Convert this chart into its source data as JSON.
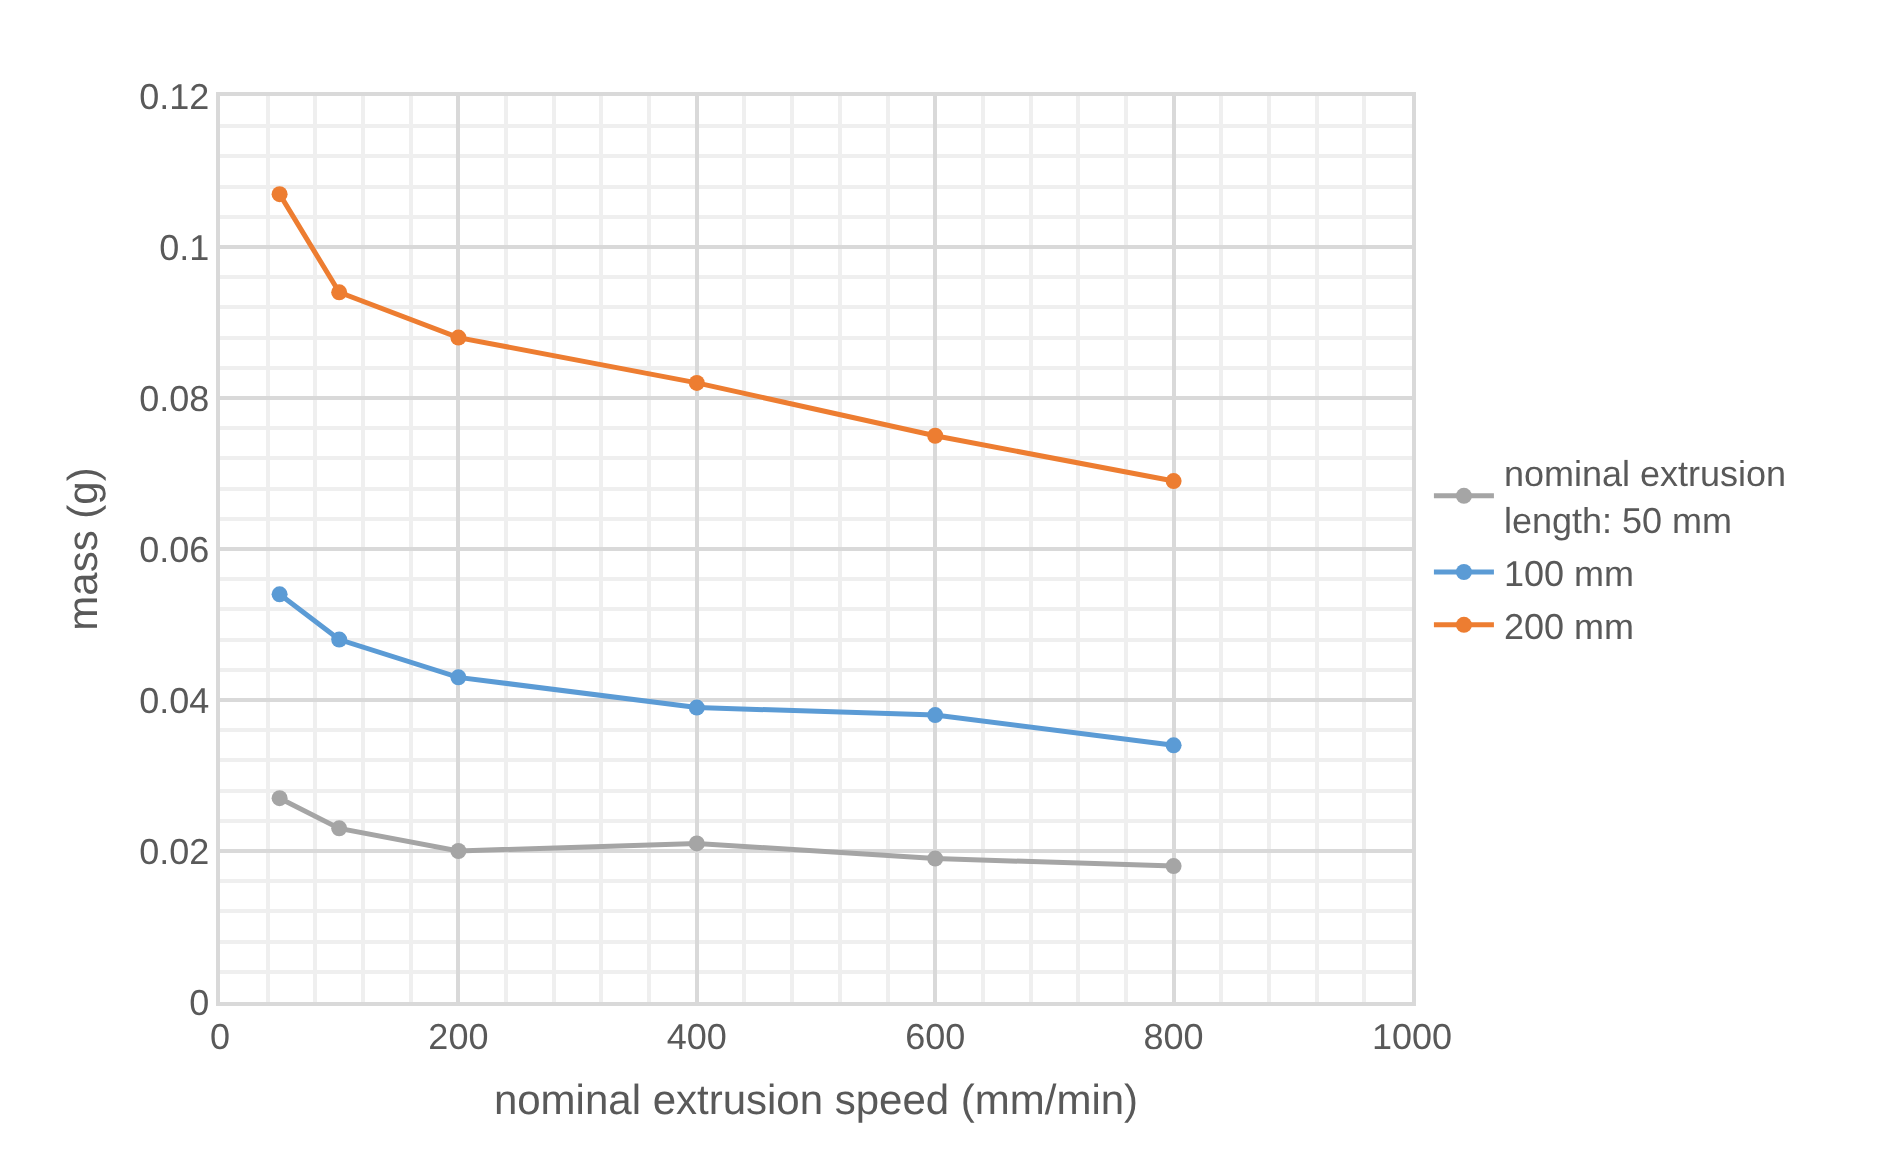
{
  "chart_data": {
    "type": "line",
    "xlabel": "nominal extrusion speed (mm/min)",
    "ylabel": "mass (g)",
    "x": [
      50,
      100,
      200,
      400,
      600,
      800
    ],
    "series": [
      {
        "name": "nominal extrusion length: 50 mm",
        "color": "#a5a5a5",
        "values": [
          0.027,
          0.023,
          0.02,
          0.021,
          0.019,
          0.018
        ]
      },
      {
        "name": "100 mm",
        "color": "#5b9bd5",
        "values": [
          0.054,
          0.048,
          0.043,
          0.039,
          0.038,
          0.034
        ]
      },
      {
        "name": "200 mm",
        "color": "#ed7d31",
        "values": [
          0.107,
          0.094,
          0.088,
          0.082,
          0.075,
          0.069
        ]
      }
    ],
    "xlim": [
      0,
      1000
    ],
    "xticks": [
      0,
      200,
      400,
      600,
      800,
      1000
    ],
    "ylim": [
      0,
      0.12
    ],
    "yticks": [
      {
        "value": 0,
        "label": "0"
      },
      0.02,
      0.04,
      0.06,
      0.08,
      {
        "value": 0.1,
        "label": "0.1"
      },
      0.12
    ],
    "grid": true,
    "legend": "right",
    "marker": "circle",
    "line_style": "solid"
  }
}
